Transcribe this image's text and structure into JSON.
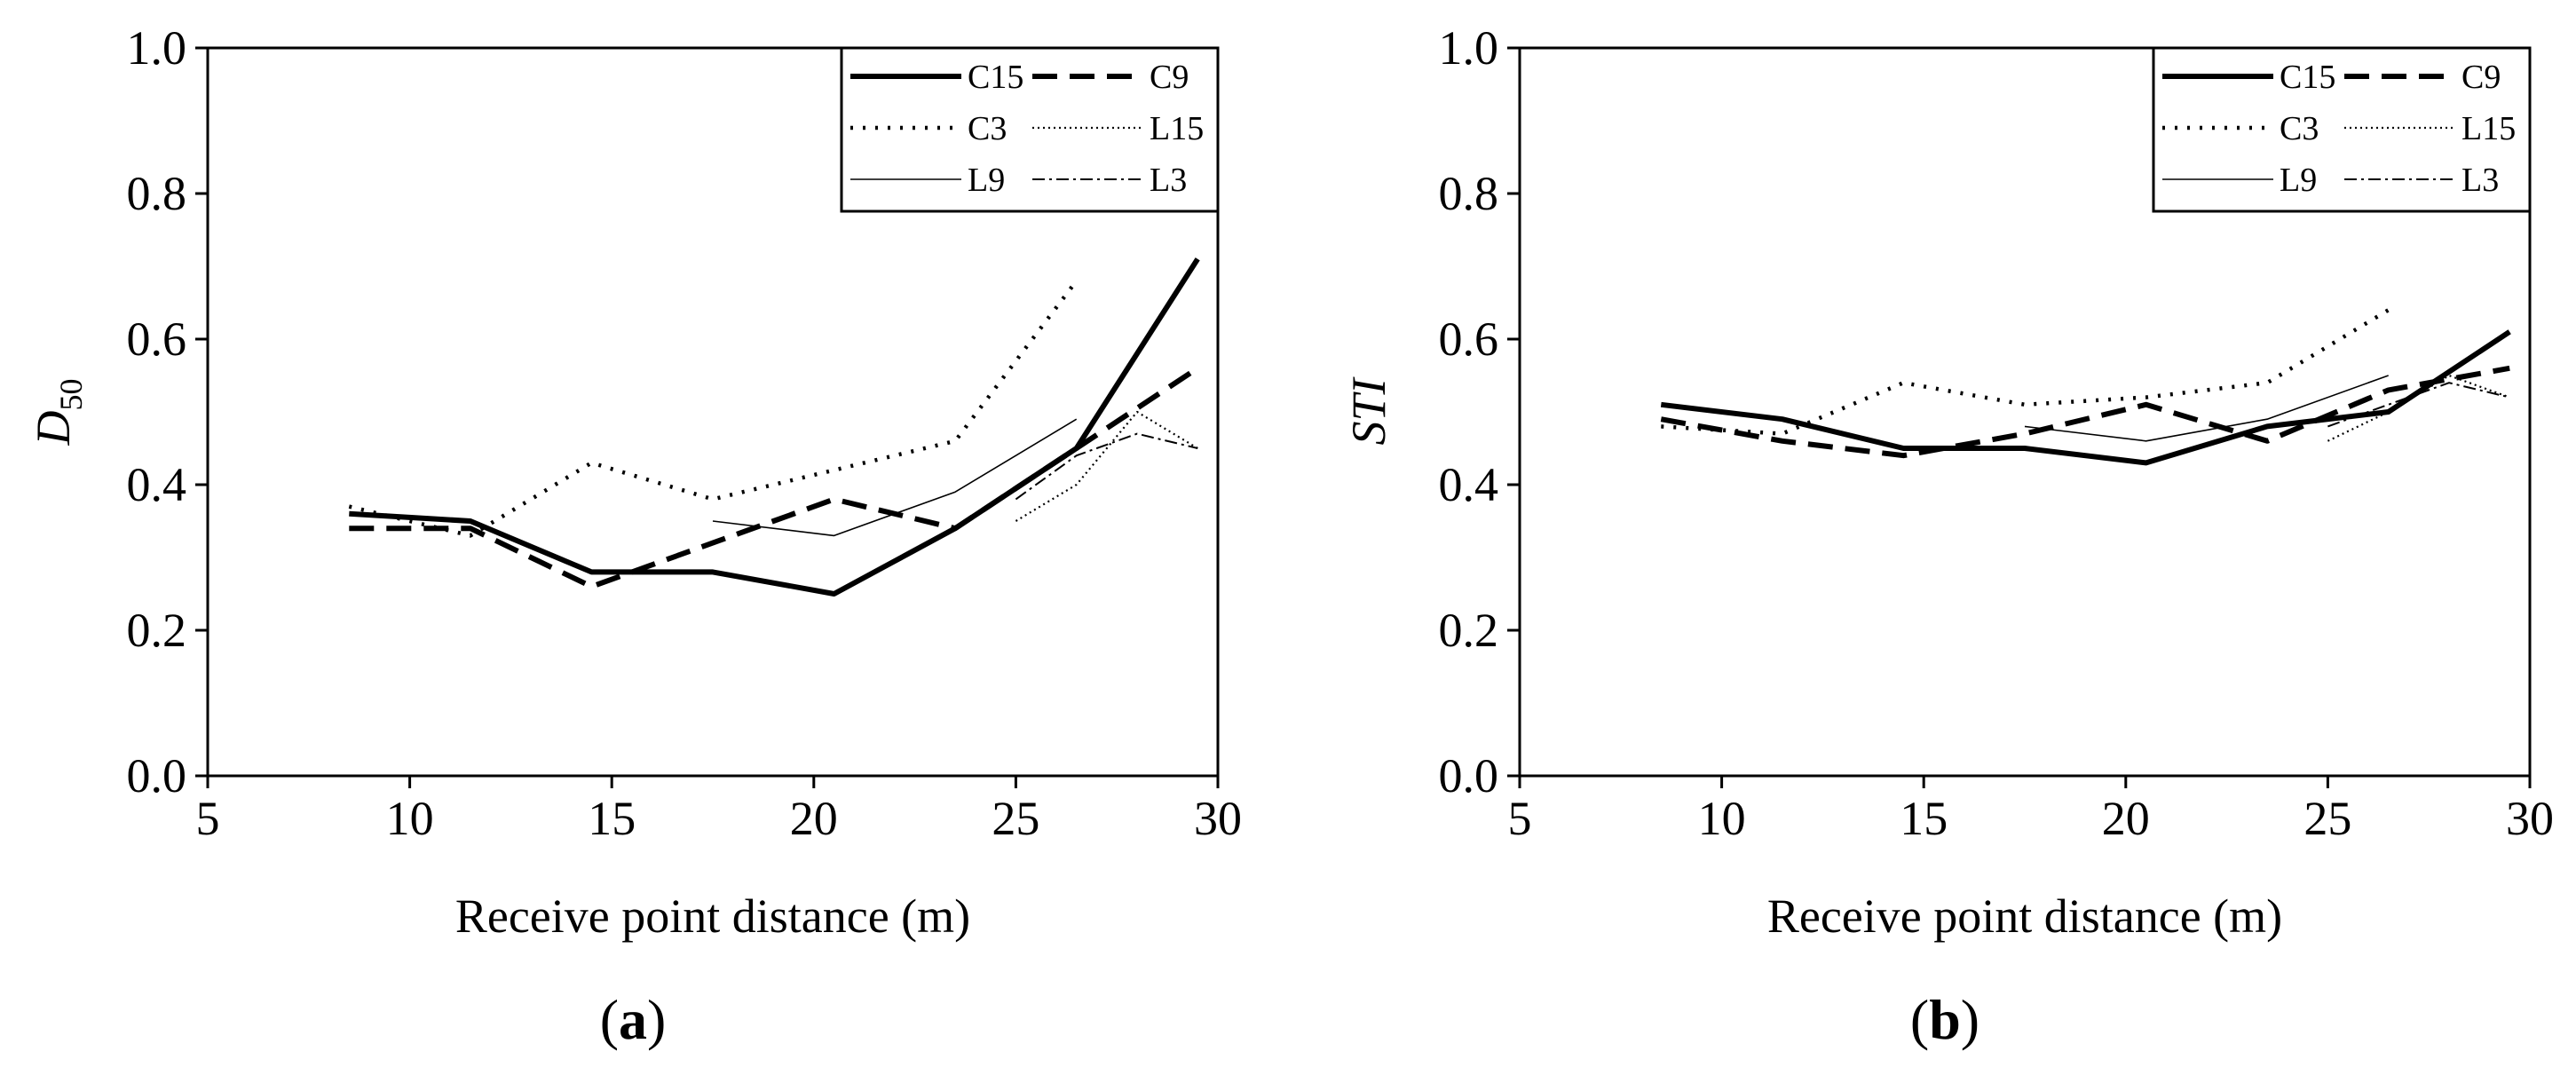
{
  "chart_data": [
    {
      "type": "line",
      "panel_label": "a",
      "xlabel": "Receive point distance (m)",
      "ylabel_base": "D",
      "ylabel_sub": "50",
      "xlim": [
        5,
        30
      ],
      "ylim": [
        0.0,
        1.0
      ],
      "xticks": [
        5,
        10,
        15,
        20,
        25,
        30
      ],
      "yticks": [
        "0.0",
        "0.2",
        "0.4",
        "0.6",
        "0.8",
        "1.0"
      ],
      "legend_position": "top-right",
      "series": [
        {
          "name": "C15",
          "style": "solid-thick",
          "x": [
            8.5,
            11.5,
            14.5,
            17.5,
            20.5,
            23.5,
            26.5,
            29.5
          ],
          "y": [
            0.36,
            0.35,
            0.28,
            0.28,
            0.25,
            0.34,
            0.45,
            0.71
          ]
        },
        {
          "name": "C9",
          "style": "dash-thick",
          "x": [
            8.5,
            11.5,
            14.5,
            17.5,
            20.5,
            23.5,
            26.5,
            29.5
          ],
          "y": [
            0.34,
            0.34,
            0.26,
            0.32,
            0.38,
            0.34,
            0.45,
            0.56
          ]
        },
        {
          "name": "C3",
          "style": "dot",
          "x": [
            8.5,
            11.5,
            14.5,
            17.5,
            20.5,
            23.5,
            26.5
          ],
          "y": [
            0.37,
            0.33,
            0.43,
            0.38,
            0.42,
            0.46,
            0.68
          ]
        },
        {
          "name": "L15",
          "style": "fine-dot",
          "x": [
            25.0,
            26.5,
            28.0,
            29.5
          ],
          "y": [
            0.35,
            0.4,
            0.5,
            0.45
          ]
        },
        {
          "name": "L9",
          "style": "thin-solid",
          "x": [
            17.5,
            20.5,
            23.5,
            26.5
          ],
          "y": [
            0.35,
            0.33,
            0.39,
            0.49
          ]
        },
        {
          "name": "L3",
          "style": "dash-dot",
          "x": [
            25.0,
            26.5,
            28.0,
            29.5
          ],
          "y": [
            0.38,
            0.44,
            0.47,
            0.45
          ]
        }
      ]
    },
    {
      "type": "line",
      "panel_label": "b",
      "xlabel": "Receive point distance (m)",
      "ylabel": "STI",
      "xlim": [
        5,
        30
      ],
      "ylim": [
        0.0,
        1.0
      ],
      "xticks": [
        5,
        10,
        15,
        20,
        25,
        30
      ],
      "yticks": [
        "0.0",
        "0.2",
        "0.4",
        "0.6",
        "0.8",
        "1.0"
      ],
      "legend_position": "top-right",
      "series": [
        {
          "name": "C15",
          "style": "solid-thick",
          "x": [
            8.5,
            11.5,
            14.5,
            17.5,
            20.5,
            23.5,
            26.5,
            29.5
          ],
          "y": [
            0.51,
            0.49,
            0.45,
            0.45,
            0.43,
            0.48,
            0.5,
            0.61
          ]
        },
        {
          "name": "C9",
          "style": "dash-thick",
          "x": [
            8.5,
            11.5,
            14.5,
            17.5,
            20.5,
            23.5,
            26.5,
            29.5
          ],
          "y": [
            0.49,
            0.46,
            0.44,
            0.47,
            0.51,
            0.46,
            0.53,
            0.56
          ]
        },
        {
          "name": "C3",
          "style": "dot",
          "x": [
            8.5,
            11.5,
            14.5,
            17.5,
            20.5,
            23.5,
            26.5
          ],
          "y": [
            0.48,
            0.47,
            0.54,
            0.51,
            0.52,
            0.54,
            0.64
          ]
        },
        {
          "name": "L15",
          "style": "fine-dot",
          "x": [
            25.0,
            26.5,
            28.0,
            29.5
          ],
          "y": [
            0.46,
            0.5,
            0.55,
            0.52
          ]
        },
        {
          "name": "L9",
          "style": "thin-solid",
          "x": [
            17.5,
            20.5,
            23.5,
            26.5
          ],
          "y": [
            0.48,
            0.46,
            0.49,
            0.55
          ]
        },
        {
          "name": "L3",
          "style": "dash-dot",
          "x": [
            25.0,
            26.5,
            28.0,
            29.5
          ],
          "y": [
            0.48,
            0.51,
            0.54,
            0.52
          ]
        }
      ]
    }
  ]
}
